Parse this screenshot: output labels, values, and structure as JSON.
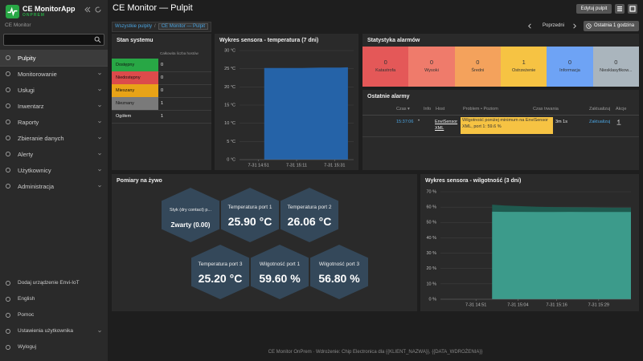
{
  "sidebar": {
    "app_name": "CE MonitorApp",
    "app_edition": "ONPREM",
    "org": "CE Monitor",
    "nav": [
      "Pulpity",
      "Monitorowanie",
      "Usługi",
      "Inwentarz",
      "Raporty",
      "Zbieranie danych",
      "Alerty",
      "Użytkownicy",
      "Administracja"
    ],
    "bottom": [
      "Dodaj urządzenie Envi-IoT",
      "English",
      "Pomoc",
      "Ustawienia użytkownika",
      "Wyloguj"
    ]
  },
  "header": {
    "title": "CE Monitor — Pulpit",
    "edit_button": "Edytuj pulpit"
  },
  "breadcrumb": {
    "items": [
      "Wszystkie pulpity",
      "CE Monitor — Pulpit"
    ],
    "separator": "/",
    "prev": "Poprzedni",
    "range": "Ostatnia 1 godzina"
  },
  "system_status": {
    "title": "Stan systemu",
    "column": "Całkowita liczba hostów",
    "rows": [
      {
        "label": "Dostępny",
        "count": 0,
        "color": "#28a745"
      },
      {
        "label": "Niedostępny",
        "count": 0,
        "color": "#dc4b4b"
      },
      {
        "label": "Mieszany",
        "count": 0,
        "color": "#e8a317"
      },
      {
        "label": "Nieznany",
        "count": 1,
        "color": "#7a7a7a"
      },
      {
        "label": "Ogółem",
        "count": 1
      }
    ]
  },
  "temperature_chart": {
    "type": "area",
    "title": "Wykres sensora - temperatura (7 dni)",
    "x": [
      "7-31 14:54",
      "7-31 15:04",
      "7-31 15:14",
      "7-31 15:24",
      "7-31 15:34",
      "7-31 15:38"
    ],
    "values": [
      25.2,
      25.2,
      25.2,
      25.3,
      25.3,
      25.4
    ],
    "color": "#2563a8",
    "xlim": [
      "7-31 14:41",
      "7-31 15:41"
    ],
    "xticks": [
      "7-31 14:51",
      "7-31 15:11",
      "7-31 15:31"
    ],
    "ylim": [
      0,
      30
    ],
    "yticks": [
      {
        "value": 0,
        "label": "0 °C"
      },
      {
        "value": 5,
        "label": "5 °C"
      },
      {
        "value": 10,
        "label": "10 °C"
      },
      {
        "value": 15,
        "label": "15 °C"
      },
      {
        "value": 20,
        "label": "20 °C"
      },
      {
        "value": 25,
        "label": "25 °C"
      },
      {
        "value": 30,
        "label": "30 °C"
      }
    ],
    "grid": true
  },
  "alarm_stats": {
    "title": "Statystyka alarmów",
    "tiles": [
      {
        "label": "Katastrofa",
        "count": 0,
        "color": "#e45858"
      },
      {
        "label": "Wysoki",
        "count": 0,
        "color": "#ef7b6b"
      },
      {
        "label": "Średni",
        "count": 0,
        "color": "#f4a25c"
      },
      {
        "label": "Ostrzeżenie",
        "count": 1,
        "color": "#f6c343"
      },
      {
        "label": "Informacja",
        "count": 0,
        "color": "#6ea3f5"
      },
      {
        "label": "Niesklasyfikow...",
        "count": 0,
        "color": "#aab5bd"
      }
    ]
  },
  "recent_alarms": {
    "title": "Ostatnie alarmy",
    "columns": [
      "Czas ▾",
      "Info",
      "Host",
      "Problem • Poziom",
      "Czas trwania",
      "Zaktualizuj",
      "Akcje"
    ],
    "rows": [
      {
        "time": "15:37:06",
        "info": "•",
        "host": "EnviSensor XML",
        "problem": "Wilgotność poniżej minimum na EnviSensor XML, port 1: 59.6 %",
        "duration": "3m 1s",
        "update": "Zaktualizuj"
      }
    ]
  },
  "live": {
    "title": "Pomiary na żywo",
    "items": [
      {
        "label": "Styk (dry contact) p...",
        "value": "Zwarty (0.00)"
      },
      {
        "label": "Temperatura port 1",
        "value": "25.90 °C"
      },
      {
        "label": "Temperatura port 2",
        "value": "26.06 °C"
      },
      {
        "label": "Temperatura port 3",
        "value": "25.20 °C"
      },
      {
        "label": "Wilgotność port 1",
        "value": "59.60 %"
      },
      {
        "label": "Wilgotność port 3",
        "value": "56.80 %"
      }
    ]
  },
  "humidity_chart": {
    "type": "area",
    "title": "Wykres sensora - wilgotność (3 dni)",
    "x": [
      "7-31 14:56",
      "7-31 15:00",
      "7-31 15:05",
      "7-31 15:10",
      "7-31 15:15",
      "7-31 15:20",
      "7-31 15:25",
      "7-31 15:30",
      "7-31 15:35",
      "7-31 15:39"
    ],
    "series": [
      {
        "color": "#1f5a4f",
        "values": [
          61.6,
          61.0,
          60.6,
          60.2,
          60.0,
          59.9,
          59.8,
          59.7,
          59.6,
          59.6
        ]
      },
      {
        "color": "#3c9b8b",
        "values": [
          57.0,
          56.9,
          56.9,
          56.8,
          56.8,
          56.9,
          56.8,
          56.8,
          56.8,
          56.8
        ]
      }
    ],
    "xlim": [
      "7-31 14:40",
      "7-31 15:39"
    ],
    "xticks": [
      "7-31 14:51",
      "7-31 15:04",
      "7-31 15:16",
      "7-31 15:29"
    ],
    "ylim": [
      0,
      70
    ],
    "yticks": [
      {
        "value": 0,
        "label": "0 %"
      },
      {
        "value": 10,
        "label": "10 %"
      },
      {
        "value": 20,
        "label": "20 %"
      },
      {
        "value": 30,
        "label": "30 %"
      },
      {
        "value": 40,
        "label": "40 %"
      },
      {
        "value": 50,
        "label": "50 %"
      },
      {
        "value": 60,
        "label": "60 %"
      },
      {
        "value": 70,
        "label": "70 %"
      }
    ],
    "grid": true
  },
  "footer": "CE Monitor OnPrem · Wdrożenie: Chip Electronica dla {{KLIENT_NAZWA}}, {{DATA_WDROŻENIA}}"
}
